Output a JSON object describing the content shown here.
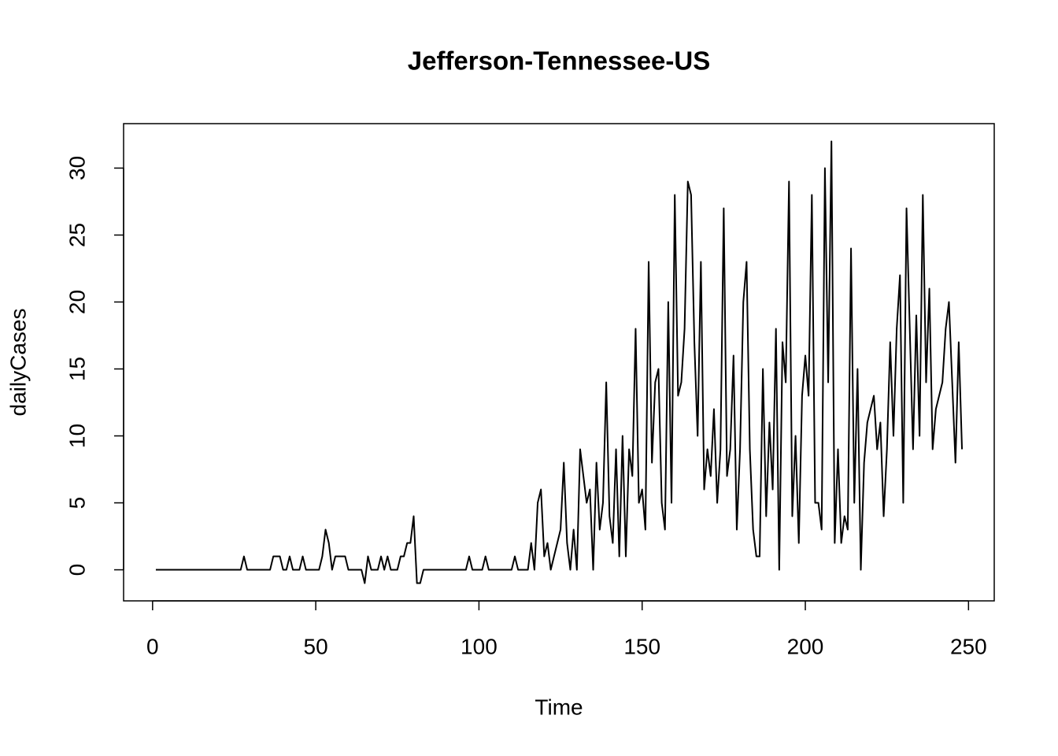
{
  "chart_data": {
    "type": "line",
    "title": "Jefferson-Tennessee-US",
    "x_label": "Time",
    "y_label": "dailyCases",
    "x": [
      1,
      2,
      3,
      4,
      5,
      6,
      7,
      8,
      9,
      10,
      11,
      12,
      13,
      14,
      15,
      16,
      17,
      18,
      19,
      20,
      21,
      22,
      23,
      24,
      25,
      26,
      27,
      28,
      29,
      30,
      31,
      32,
      33,
      34,
      35,
      36,
      37,
      38,
      39,
      40,
      41,
      42,
      43,
      44,
      45,
      46,
      47,
      48,
      49,
      50,
      51,
      52,
      53,
      54,
      55,
      56,
      57,
      58,
      59,
      60,
      61,
      62,
      63,
      64,
      65,
      66,
      67,
      68,
      69,
      70,
      71,
      72,
      73,
      74,
      75,
      76,
      77,
      78,
      79,
      80,
      81,
      82,
      83,
      84,
      85,
      86,
      87,
      88,
      89,
      90,
      91,
      92,
      93,
      94,
      95,
      96,
      97,
      98,
      99,
      100,
      101,
      102,
      103,
      104,
      105,
      106,
      107,
      108,
      109,
      110,
      111,
      112,
      113,
      114,
      115,
      116,
      117,
      118,
      119,
      120,
      121,
      122,
      123,
      124,
      125,
      126,
      127,
      128,
      129,
      130,
      131,
      132,
      133,
      134,
      135,
      136,
      137,
      138,
      139,
      140,
      141,
      142,
      143,
      144,
      145,
      146,
      147,
      148,
      149,
      150,
      151,
      152,
      153,
      154,
      155,
      156,
      157,
      158,
      159,
      160,
      161,
      162,
      163,
      164,
      165,
      166,
      167,
      168,
      169,
      170,
      171,
      172,
      173,
      174,
      175,
      176,
      177,
      178,
      179,
      180,
      181,
      182,
      183,
      184,
      185,
      186,
      187,
      188,
      189,
      190,
      191,
      192,
      193,
      194,
      195,
      196,
      197,
      198,
      199,
      200,
      201,
      202,
      203,
      204,
      205,
      206,
      207,
      208,
      209,
      210,
      211,
      212,
      213,
      214,
      215,
      216,
      217,
      218,
      219,
      220,
      221,
      222,
      223,
      224,
      225,
      226,
      227,
      228,
      229,
      230,
      231,
      232,
      233,
      234,
      235,
      236,
      237,
      238,
      239,
      240,
      241,
      242,
      243,
      244,
      245,
      246,
      247,
      248
    ],
    "series": [
      {
        "name": "dailyCases",
        "color": "#000000",
        "values": [
          0,
          0,
          0,
          0,
          0,
          0,
          0,
          0,
          0,
          0,
          0,
          0,
          0,
          0,
          0,
          0,
          0,
          0,
          0,
          0,
          0,
          0,
          0,
          0,
          0,
          0,
          0,
          1,
          0,
          0,
          0,
          0,
          0,
          0,
          0,
          0,
          1,
          1,
          1,
          0,
          0,
          1,
          0,
          0,
          0,
          1,
          0,
          0,
          0,
          0,
          0,
          1,
          3,
          2,
          0,
          1,
          1,
          1,
          1,
          0,
          0,
          0,
          0,
          0,
          -1,
          1,
          0,
          0,
          0,
          1,
          0,
          1,
          0,
          0,
          0,
          1,
          1,
          2,
          2,
          4,
          -1,
          -1,
          0,
          0,
          0,
          0,
          0,
          0,
          0,
          0,
          0,
          0,
          0,
          0,
          0,
          0,
          1,
          0,
          0,
          0,
          0,
          1,
          0,
          0,
          0,
          0,
          0,
          0,
          0,
          0,
          1,
          0,
          0,
          0,
          0,
          2,
          0,
          5,
          6,
          1,
          2,
          0,
          1,
          2,
          3,
          8,
          2,
          0,
          3,
          0,
          9,
          7,
          5,
          6,
          0,
          8,
          3,
          5,
          14,
          4,
          2,
          9,
          1,
          10,
          1,
          9,
          7,
          18,
          5,
          6,
          3,
          23,
          8,
          14,
          15,
          5,
          3,
          20,
          5,
          28,
          13,
          14,
          18,
          29,
          28,
          17,
          10,
          23,
          6,
          9,
          7,
          12,
          5,
          9,
          27,
          7,
          9,
          16,
          3,
          9,
          20,
          23,
          9,
          3,
          1,
          1,
          15,
          4,
          11,
          6,
          18,
          0,
          17,
          14,
          29,
          4,
          10,
          2,
          13,
          16,
          13,
          28,
          5,
          5,
          3,
          30,
          14,
          32,
          2,
          9,
          2,
          4,
          3,
          24,
          5,
          15,
          0,
          8,
          11,
          12,
          13,
          9,
          11,
          4,
          9,
          17,
          10,
          18,
          22,
          5,
          27,
          18,
          9,
          19,
          10,
          28,
          14,
          21,
          9,
          12,
          13,
          14,
          18,
          20,
          14,
          8,
          17,
          9
        ]
      }
    ],
    "xlim": [
      -8.88,
      257.88
    ],
    "ylim": [
      -2.32,
      33.32
    ],
    "xticks": [
      0,
      50,
      100,
      150,
      200,
      250
    ],
    "yticks": [
      0,
      5,
      10,
      15,
      20,
      25,
      30
    ]
  }
}
